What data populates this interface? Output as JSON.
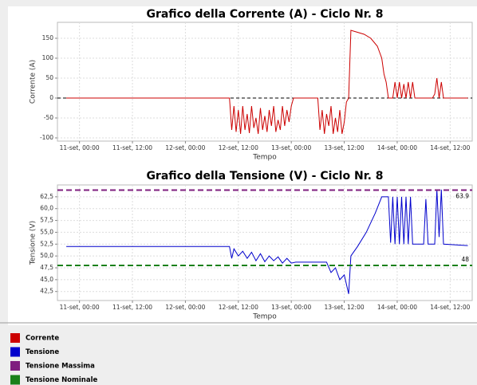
{
  "chart_data": [
    {
      "type": "line",
      "title": "Grafico della Corrente (A) - Ciclo Nr. 8",
      "xlabel": "Tempo",
      "ylabel": "Corrente (A)",
      "xlim": [
        "10-set, 19:00",
        "14-set, 17:00"
      ],
      "xticks": [
        "11-set, 00:00",
        "11-set, 12:00",
        "12-set, 00:00",
        "12-set, 12:00",
        "13-set, 00:00",
        "13-set, 12:00",
        "14-set, 00:00",
        "14-set, 12:00"
      ],
      "ylim": [
        -108,
        190
      ],
      "yticks": [
        -100,
        -50,
        0,
        50,
        100,
        150
      ],
      "grid": true,
      "reference_line": 0,
      "reference_color": "#000000",
      "x": [
        "10-set, 21:00",
        "12-set, 10:00",
        "12-set, 10:30",
        "12-set, 11:00",
        "12-set, 11:30",
        "12-set, 12:00",
        "12-set, 12:30",
        "12-set, 13:00",
        "12-set, 13:30",
        "12-set, 14:00",
        "12-set, 14:30",
        "12-set, 15:00",
        "12-set, 15:30",
        "12-set, 16:00",
        "12-set, 16:30",
        "12-set, 17:00",
        "12-set, 17:30",
        "12-set, 18:00",
        "12-set, 18:30",
        "12-set, 19:00",
        "12-set, 19:30",
        "12-set, 20:00",
        "12-set, 20:30",
        "12-set, 21:00",
        "12-set, 21:30",
        "12-set, 22:00",
        "12-set, 22:30",
        "12-set, 23:00",
        "12-set, 23:30",
        "13-set, 00:00",
        "13-set, 00:30",
        "13-set, 06:00",
        "13-set, 06:30",
        "13-set, 07:00",
        "13-set, 07:30",
        "13-set, 08:00",
        "13-set, 08:30",
        "13-set, 09:00",
        "13-set, 09:30",
        "13-set, 10:00",
        "13-set, 10:30",
        "13-set, 11:00",
        "13-set, 11:30",
        "13-set, 12:00",
        "13-set, 12:30",
        "13-set, 13:00",
        "13-set, 13:30",
        "13-set, 15:00",
        "13-set, 16:30",
        "13-set, 18:00",
        "13-set, 19:30",
        "13-set, 20:30",
        "13-set, 21:00",
        "13-set, 21:30",
        "13-set, 22:00",
        "13-set, 23:00",
        "13-set, 23:30",
        "14-set, 00:00",
        "14-set, 00:30",
        "14-set, 01:00",
        "14-set, 01:30",
        "14-set, 02:00",
        "14-set, 02:30",
        "14-set, 03:00",
        "14-set, 03:30",
        "14-set, 04:00",
        "14-set, 08:00",
        "14-set, 08:30",
        "14-set, 09:00",
        "14-set, 09:30",
        "14-set, 10:00",
        "14-set, 10:30",
        "14-set, 16:00"
      ],
      "series": [
        {
          "name": "Corrente",
          "color": "#cc0000",
          "values": [
            0,
            0,
            -80,
            -20,
            -85,
            -30,
            -90,
            -20,
            -80,
            -40,
            -88,
            -20,
            -75,
            -50,
            -90,
            -25,
            -80,
            -45,
            -85,
            -30,
            -70,
            -20,
            -85,
            -55,
            -80,
            -20,
            -70,
            -30,
            -60,
            -20,
            0,
            0,
            -80,
            -30,
            -90,
            -40,
            -70,
            -20,
            -90,
            -50,
            -85,
            -30,
            -90,
            -60,
            -10,
            0,
            170,
            165,
            160,
            150,
            130,
            100,
            60,
            40,
            0,
            0,
            40,
            0,
            40,
            0,
            35,
            0,
            40,
            0,
            40,
            0,
            0,
            10,
            50,
            0,
            40,
            0,
            0
          ]
        }
      ]
    },
    {
      "type": "line",
      "title": "Grafico della Tensione (V) - Ciclo Nr. 8",
      "xlabel": "Tempo",
      "ylabel": "Tensione (V)",
      "xlim": [
        "10-set, 19:00",
        "14-set, 17:00"
      ],
      "xticks": [
        "11-set, 00:00",
        "11-set, 12:00",
        "12-set, 00:00",
        "12-set, 12:00",
        "13-set, 00:00",
        "13-set, 12:00",
        "14-set, 00:00",
        "14-set, 12:00"
      ],
      "ylim": [
        40.6,
        65
      ],
      "grid": true,
      "yticks": [
        {
          "value": 42.5,
          "label": "42,5"
        },
        {
          "value": 45,
          "label": "45,0"
        },
        {
          "value": 47.5,
          "label": "47,5"
        },
        {
          "value": 50,
          "label": "50,0"
        },
        {
          "value": 52.5,
          "label": "52,5"
        },
        {
          "value": 55,
          "label": "55,0"
        },
        {
          "value": 57.5,
          "label": "57,5"
        },
        {
          "value": 60,
          "label": "60,0"
        },
        {
          "value": 62.5,
          "label": "62,5"
        }
      ],
      "x": [
        "10-set, 21:00",
        "12-set, 10:00",
        "12-set, 10:30",
        "12-set, 11:00",
        "12-set, 12:00",
        "12-set, 13:00",
        "12-set, 14:00",
        "12-set, 15:00",
        "12-set, 16:00",
        "12-set, 17:00",
        "12-set, 18:00",
        "12-set, 19:00",
        "12-set, 20:00",
        "12-set, 21:00",
        "12-set, 22:00",
        "12-set, 23:00",
        "13-set, 00:00",
        "13-set, 01:00",
        "13-set, 08:00",
        "13-set, 09:00",
        "13-set, 10:00",
        "13-set, 11:00",
        "13-set, 12:00",
        "13-set, 13:00",
        "13-set, 13:30",
        "13-set, 15:00",
        "13-set, 17:00",
        "13-set, 19:00",
        "13-set, 20:30",
        "13-set, 22:00",
        "13-set, 22:30",
        "13-set, 23:00",
        "13-set, 23:30",
        "14-set, 00:00",
        "14-set, 00:30",
        "14-set, 01:00",
        "14-set, 01:30",
        "14-set, 02:00",
        "14-set, 02:30",
        "14-set, 03:00",
        "14-set, 03:30",
        "14-set, 06:00",
        "14-set, 06:30",
        "14-set, 07:00",
        "14-set, 08:30",
        "14-set, 09:00",
        "14-set, 09:30",
        "14-set, 10:00",
        "14-set, 10:30",
        "14-set, 16:00"
      ],
      "series": [
        {
          "name": "Tensione",
          "color": "#0000cc",
          "values": [
            52,
            52,
            49.5,
            51.5,
            50,
            51,
            49.5,
            50.8,
            49,
            50.5,
            48.8,
            50,
            49,
            49.8,
            48.5,
            49.5,
            48.5,
            48.7,
            48.7,
            46.5,
            47.5,
            45,
            46,
            42,
            50,
            52,
            55,
            59,
            62.5,
            62.5,
            52.8,
            62.5,
            52.5,
            62.5,
            52.5,
            62.5,
            52.5,
            62.5,
            52.5,
            62.5,
            52.5,
            52.5,
            62,
            52.5,
            52.5,
            64,
            54,
            64,
            52.5,
            52.2
          ]
        },
        {
          "name": "Tensione Massima",
          "color": "#7f1f7f",
          "value": 63.9,
          "dashed": true
        },
        {
          "name": "Tensione Nominale",
          "color": "#1a801a",
          "value": 48,
          "dashed": true
        }
      ]
    }
  ]
}
